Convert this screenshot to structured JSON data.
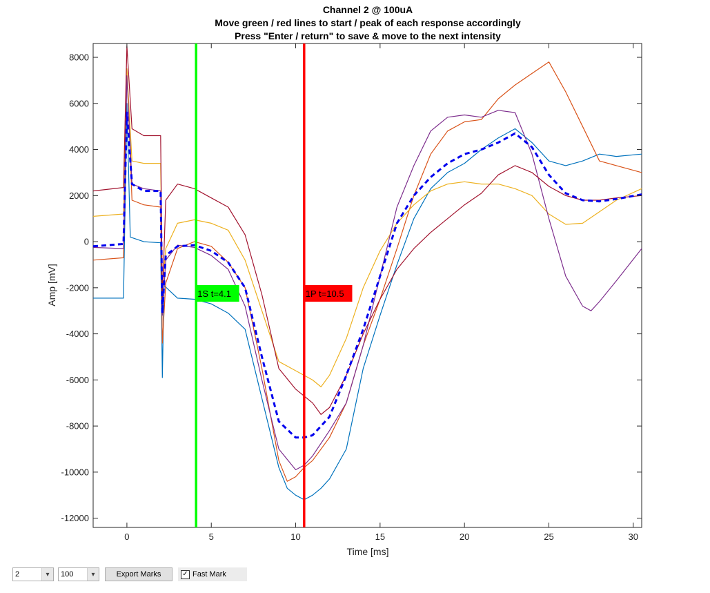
{
  "chart_data": {
    "type": "line",
    "title": [
      "Channel 2 @ 100uA",
      "Move green / red lines to start / peak of each response accordingly",
      "Press \"Enter / return\" to save & move to the next intensity"
    ],
    "xlabel": "Time [ms]",
    "ylabel": "Amp [mV]",
    "xlim": [
      -2,
      30.5
    ],
    "ylim": [
      -12400,
      8600
    ],
    "xticks": [
      0,
      5,
      10,
      15,
      20,
      25,
      30
    ],
    "yticks": [
      -12000,
      -10000,
      -8000,
      -6000,
      -4000,
      -2000,
      0,
      2000,
      4000,
      6000,
      8000
    ],
    "grid": false,
    "series": [
      {
        "color": "#0072BD",
        "style": "solid",
        "points": [
          [
            -2,
            -2450
          ],
          [
            -0.2,
            -2450
          ],
          [
            0,
            6000
          ],
          [
            0.2,
            200
          ],
          [
            1,
            0
          ],
          [
            2,
            -50
          ],
          [
            2.1,
            -5900
          ],
          [
            2.2,
            -1900
          ],
          [
            3,
            -2450
          ],
          [
            4,
            -2500
          ],
          [
            5,
            -2700
          ],
          [
            6,
            -3100
          ],
          [
            7,
            -3800
          ],
          [
            8,
            -6800
          ],
          [
            9,
            -9800
          ],
          [
            9.5,
            -10700
          ],
          [
            10,
            -11000
          ],
          [
            10.5,
            -11200
          ],
          [
            11,
            -11000
          ],
          [
            11.5,
            -10700
          ],
          [
            12,
            -10300
          ],
          [
            13,
            -9000
          ],
          [
            14,
            -5500
          ],
          [
            15,
            -3200
          ],
          [
            16,
            -1000
          ],
          [
            17,
            1000
          ],
          [
            18,
            2300
          ],
          [
            19,
            3000
          ],
          [
            20,
            3400
          ],
          [
            21,
            4000
          ],
          [
            22,
            4500
          ],
          [
            23,
            4900
          ],
          [
            24,
            4300
          ],
          [
            25,
            3500
          ],
          [
            26,
            3300
          ],
          [
            27,
            3500
          ],
          [
            28,
            3800
          ],
          [
            29,
            3700
          ],
          [
            30.5,
            3800
          ]
        ]
      },
      {
        "color": "#D95319",
        "style": "solid",
        "points": [
          [
            -2,
            -800
          ],
          [
            -0.2,
            -700
          ],
          [
            0,
            7500
          ],
          [
            0.3,
            1800
          ],
          [
            1,
            1600
          ],
          [
            2,
            1500
          ],
          [
            2.1,
            -4400
          ],
          [
            2.3,
            -1800
          ],
          [
            3,
            -300
          ],
          [
            4,
            0
          ],
          [
            5,
            -200
          ],
          [
            6,
            -900
          ],
          [
            7,
            -2000
          ],
          [
            8,
            -5500
          ],
          [
            9,
            -9500
          ],
          [
            9.5,
            -10400
          ],
          [
            10,
            -10200
          ],
          [
            10.5,
            -9800
          ],
          [
            11,
            -9500
          ],
          [
            12,
            -8500
          ],
          [
            13,
            -7000
          ],
          [
            14,
            -4500
          ],
          [
            15,
            -2500
          ],
          [
            16,
            -300
          ],
          [
            17,
            2000
          ],
          [
            18,
            3800
          ],
          [
            19,
            4800
          ],
          [
            20,
            5200
          ],
          [
            21,
            5300
          ],
          [
            22,
            6200
          ],
          [
            23,
            6800
          ],
          [
            24,
            7300
          ],
          [
            25,
            7800
          ],
          [
            26,
            6500
          ],
          [
            27,
            5000
          ],
          [
            28,
            3500
          ],
          [
            29,
            3300
          ],
          [
            30.5,
            3000
          ]
        ]
      },
      {
        "color": "#EDB120",
        "style": "solid",
        "points": [
          [
            -2,
            1100
          ],
          [
            -0.2,
            1200
          ],
          [
            0,
            7500
          ],
          [
            0.3,
            3500
          ],
          [
            1,
            3400
          ],
          [
            2,
            3400
          ],
          [
            2.1,
            -2000
          ],
          [
            2.3,
            -300
          ],
          [
            3,
            800
          ],
          [
            4,
            950
          ],
          [
            5,
            800
          ],
          [
            6,
            500
          ],
          [
            7,
            -800
          ],
          [
            8,
            -3000
          ],
          [
            9,
            -5200
          ],
          [
            10,
            -5600
          ],
          [
            11,
            -6000
          ],
          [
            11.5,
            -6300
          ],
          [
            12,
            -5800
          ],
          [
            13,
            -4200
          ],
          [
            14,
            -2000
          ],
          [
            15,
            -400
          ],
          [
            16,
            800
          ],
          [
            17,
            1600
          ],
          [
            18,
            2200
          ],
          [
            19,
            2500
          ],
          [
            20,
            2600
          ],
          [
            21,
            2500
          ],
          [
            22,
            2500
          ],
          [
            23,
            2300
          ],
          [
            24,
            2000
          ],
          [
            25,
            1200
          ],
          [
            26,
            750
          ],
          [
            27,
            800
          ],
          [
            28,
            1300
          ],
          [
            29,
            1800
          ],
          [
            30.5,
            2300
          ]
        ]
      },
      {
        "color": "#7E2F8E",
        "style": "solid",
        "points": [
          [
            -2,
            -250
          ],
          [
            -0.2,
            -300
          ],
          [
            0,
            7200
          ],
          [
            0.3,
            2500
          ],
          [
            1,
            2300
          ],
          [
            2,
            2200
          ],
          [
            2.1,
            -3200
          ],
          [
            2.3,
            -800
          ],
          [
            3,
            -150
          ],
          [
            4,
            -250
          ],
          [
            5,
            -600
          ],
          [
            6,
            -1200
          ],
          [
            7,
            -2800
          ],
          [
            8,
            -6000
          ],
          [
            9,
            -9000
          ],
          [
            10,
            -9900
          ],
          [
            10.5,
            -9700
          ],
          [
            11,
            -9300
          ],
          [
            12,
            -8200
          ],
          [
            13,
            -7000
          ],
          [
            14,
            -4500
          ],
          [
            15,
            -1500
          ],
          [
            16,
            1500
          ],
          [
            17,
            3300
          ],
          [
            18,
            4800
          ],
          [
            19,
            5400
          ],
          [
            20,
            5500
          ],
          [
            21,
            5400
          ],
          [
            22,
            5700
          ],
          [
            23,
            5600
          ],
          [
            24,
            3800
          ],
          [
            25,
            1000
          ],
          [
            26,
            -1500
          ],
          [
            27,
            -2800
          ],
          [
            27.5,
            -3000
          ],
          [
            28,
            -2600
          ],
          [
            29,
            -1700
          ],
          [
            30.5,
            -300
          ]
        ]
      },
      {
        "color": "#A2142F",
        "style": "solid",
        "points": [
          [
            -2,
            2200
          ],
          [
            -0.2,
            2350
          ],
          [
            0,
            8500
          ],
          [
            0.3,
            4900
          ],
          [
            1,
            4600
          ],
          [
            2,
            4600
          ],
          [
            2.1,
            -2500
          ],
          [
            2.3,
            1800
          ],
          [
            3,
            2500
          ],
          [
            4,
            2300
          ],
          [
            5,
            1900
          ],
          [
            6,
            1500
          ],
          [
            7,
            300
          ],
          [
            8,
            -2300
          ],
          [
            9,
            -5500
          ],
          [
            10,
            -6400
          ],
          [
            11,
            -7000
          ],
          [
            11.5,
            -7500
          ],
          [
            12,
            -7200
          ],
          [
            13,
            -5800
          ],
          [
            14,
            -4000
          ],
          [
            15,
            -2500
          ],
          [
            16,
            -1200
          ],
          [
            17,
            -300
          ],
          [
            18,
            400
          ],
          [
            19,
            1000
          ],
          [
            20,
            1600
          ],
          [
            21,
            2100
          ],
          [
            22,
            2900
          ],
          [
            23,
            3300
          ],
          [
            24,
            3000
          ],
          [
            25,
            2400
          ],
          [
            26,
            2000
          ],
          [
            27,
            1800
          ],
          [
            28,
            1800
          ],
          [
            29,
            1900
          ],
          [
            30.5,
            2000
          ]
        ]
      },
      {
        "color": "#0000EE",
        "style": "dashed",
        "points": [
          [
            -2,
            -200
          ],
          [
            -0.2,
            -100
          ],
          [
            0,
            5600
          ],
          [
            0.3,
            2500
          ],
          [
            1,
            2200
          ],
          [
            2,
            2200
          ],
          [
            2.1,
            -3100
          ],
          [
            2.3,
            -600
          ],
          [
            3,
            -200
          ],
          [
            4,
            -150
          ],
          [
            5,
            -400
          ],
          [
            6,
            -900
          ],
          [
            7,
            -2000
          ],
          [
            8,
            -5000
          ],
          [
            9,
            -7800
          ],
          [
            10,
            -8500
          ],
          [
            10.5,
            -8500
          ],
          [
            11,
            -8400
          ],
          [
            12,
            -7600
          ],
          [
            13,
            -5800
          ],
          [
            14,
            -3800
          ],
          [
            15,
            -1500
          ],
          [
            16,
            800
          ],
          [
            17,
            2000
          ],
          [
            18,
            2800
          ],
          [
            19,
            3400
          ],
          [
            20,
            3800
          ],
          [
            21,
            4000
          ],
          [
            22,
            4300
          ],
          [
            23,
            4700
          ],
          [
            24,
            4100
          ],
          [
            25,
            2900
          ],
          [
            26,
            2100
          ],
          [
            27,
            1800
          ],
          [
            28,
            1750
          ],
          [
            29,
            1850
          ],
          [
            30.5,
            2050
          ]
        ]
      }
    ],
    "markers": [
      {
        "x": 4.1,
        "color": "#00FF00",
        "label": "1S t=4.1"
      },
      {
        "x": 10.5,
        "color": "#FF0000",
        "label": "1P t=10.5"
      }
    ]
  },
  "controls": {
    "channel_value": "2",
    "intensity_value": "100",
    "export_label": "Export Marks",
    "fast_mark_label": "Fast Mark",
    "fast_mark_checked": "✓"
  }
}
